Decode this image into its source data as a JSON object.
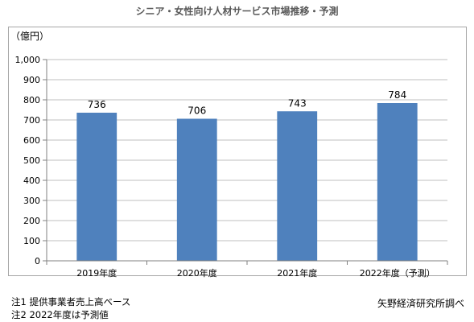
{
  "title": "シニア・女性向け人材サービス市場推移・予測",
  "unit": "（億円）",
  "notes": [
    "注1 提供事業者売上高ベース",
    "注2 2022年度は予測値"
  ],
  "source": "矢野経済研究所調べ",
  "colors": {
    "bar": "#4f81bd",
    "grid": "#bfbfbf",
    "axis": "#808080",
    "title": "#595959"
  },
  "chart_data": {
    "type": "bar",
    "title": "シニア・女性向け人材サービス市場推移・予測",
    "ylabel": "（億円）",
    "xlabel": "",
    "categories": [
      "2019年度",
      "2020年度",
      "2021年度",
      "2022年度（予測）"
    ],
    "values": [
      736,
      706,
      743,
      784
    ],
    "data_labels": [
      "736",
      "706",
      "743",
      "784"
    ],
    "ylim": [
      0,
      1000
    ],
    "yticks": [
      0,
      100,
      200,
      300,
      400,
      500,
      600,
      700,
      800,
      900,
      1000
    ],
    "ytick_labels": [
      "0",
      "100",
      "200",
      "300",
      "400",
      "500",
      "600",
      "700",
      "800",
      "900",
      "1,000"
    ],
    "grid": true,
    "legend": "none"
  }
}
